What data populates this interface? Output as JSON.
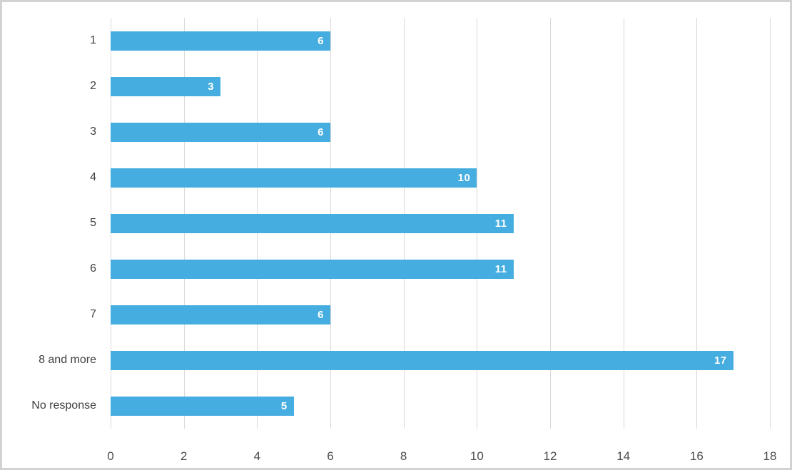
{
  "colors": {
    "bar": "#45ADDF",
    "grid": "#D9D9D9",
    "category_text": "#404040",
    "tick_text": "#4D4D4D",
    "value_text": "#FFFFFF",
    "frame_border": "#D2D2D2",
    "background": "#FFFFFF"
  },
  "chart_data": {
    "type": "bar",
    "orientation": "horizontal",
    "title": "",
    "xlabel": "",
    "ylabel": "",
    "categories": [
      "1",
      "2",
      "3",
      "4",
      "5",
      "6",
      "7",
      "8 and more",
      "No response"
    ],
    "values": [
      6,
      3,
      6,
      10,
      11,
      11,
      6,
      17,
      5
    ],
    "xlim": [
      0,
      18
    ],
    "xticks": [
      0,
      2,
      4,
      6,
      8,
      10,
      12,
      14,
      16,
      18
    ],
    "grid": "vertical-only",
    "legend": "none",
    "value_labels": "inside-end"
  }
}
